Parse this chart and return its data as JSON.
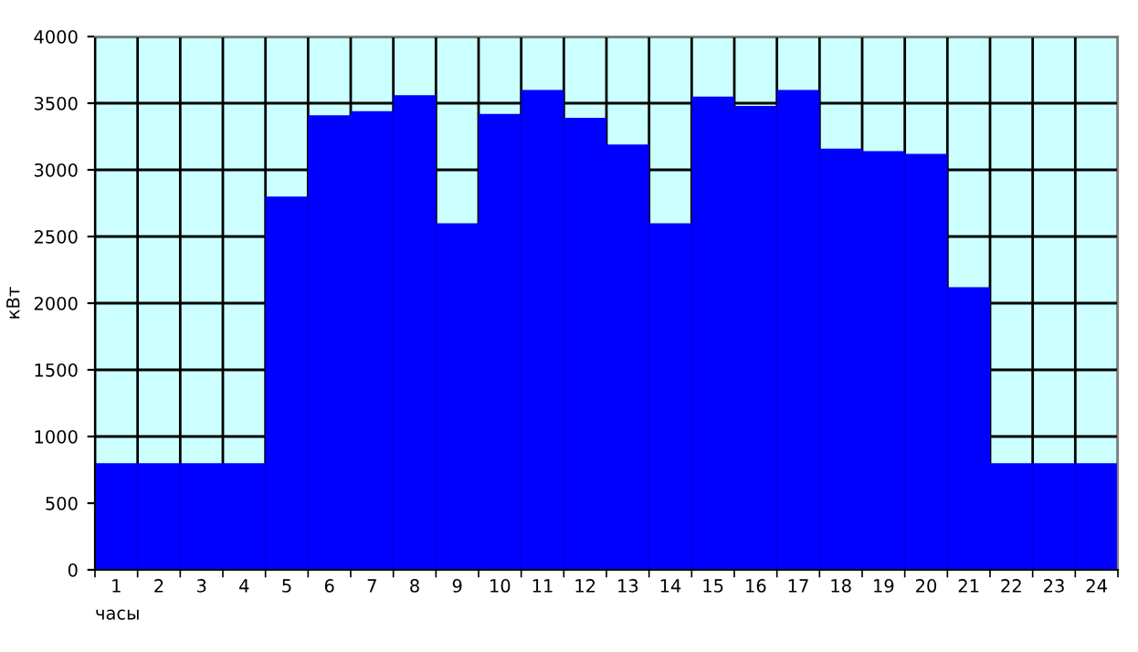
{
  "chart_data": {
    "type": "bar",
    "xlabel": "часы",
    "ylabel": "кВт",
    "categories": [
      "1",
      "2",
      "3",
      "4",
      "5",
      "6",
      "7",
      "8",
      "9",
      "10",
      "11",
      "12",
      "13",
      "14",
      "15",
      "16",
      "17",
      "18",
      "19",
      "20",
      "21",
      "22",
      "23",
      "24"
    ],
    "values": [
      800,
      800,
      800,
      800,
      2800,
      3410,
      3440,
      3560,
      2600,
      3420,
      3600,
      3390,
      3190,
      2600,
      3550,
      3480,
      3600,
      3160,
      3140,
      3120,
      2120,
      800,
      800,
      800
    ],
    "color": "#0000ff",
    "bands": [
      {
        "axis": "y",
        "from": 0,
        "to": 4000,
        "color": "#ccffff"
      }
    ],
    "ylim": [
      0,
      4000
    ],
    "yticks": [
      0,
      500,
      1000,
      1500,
      2000,
      2500,
      3000,
      3500,
      4000
    ],
    "grid": true
  }
}
